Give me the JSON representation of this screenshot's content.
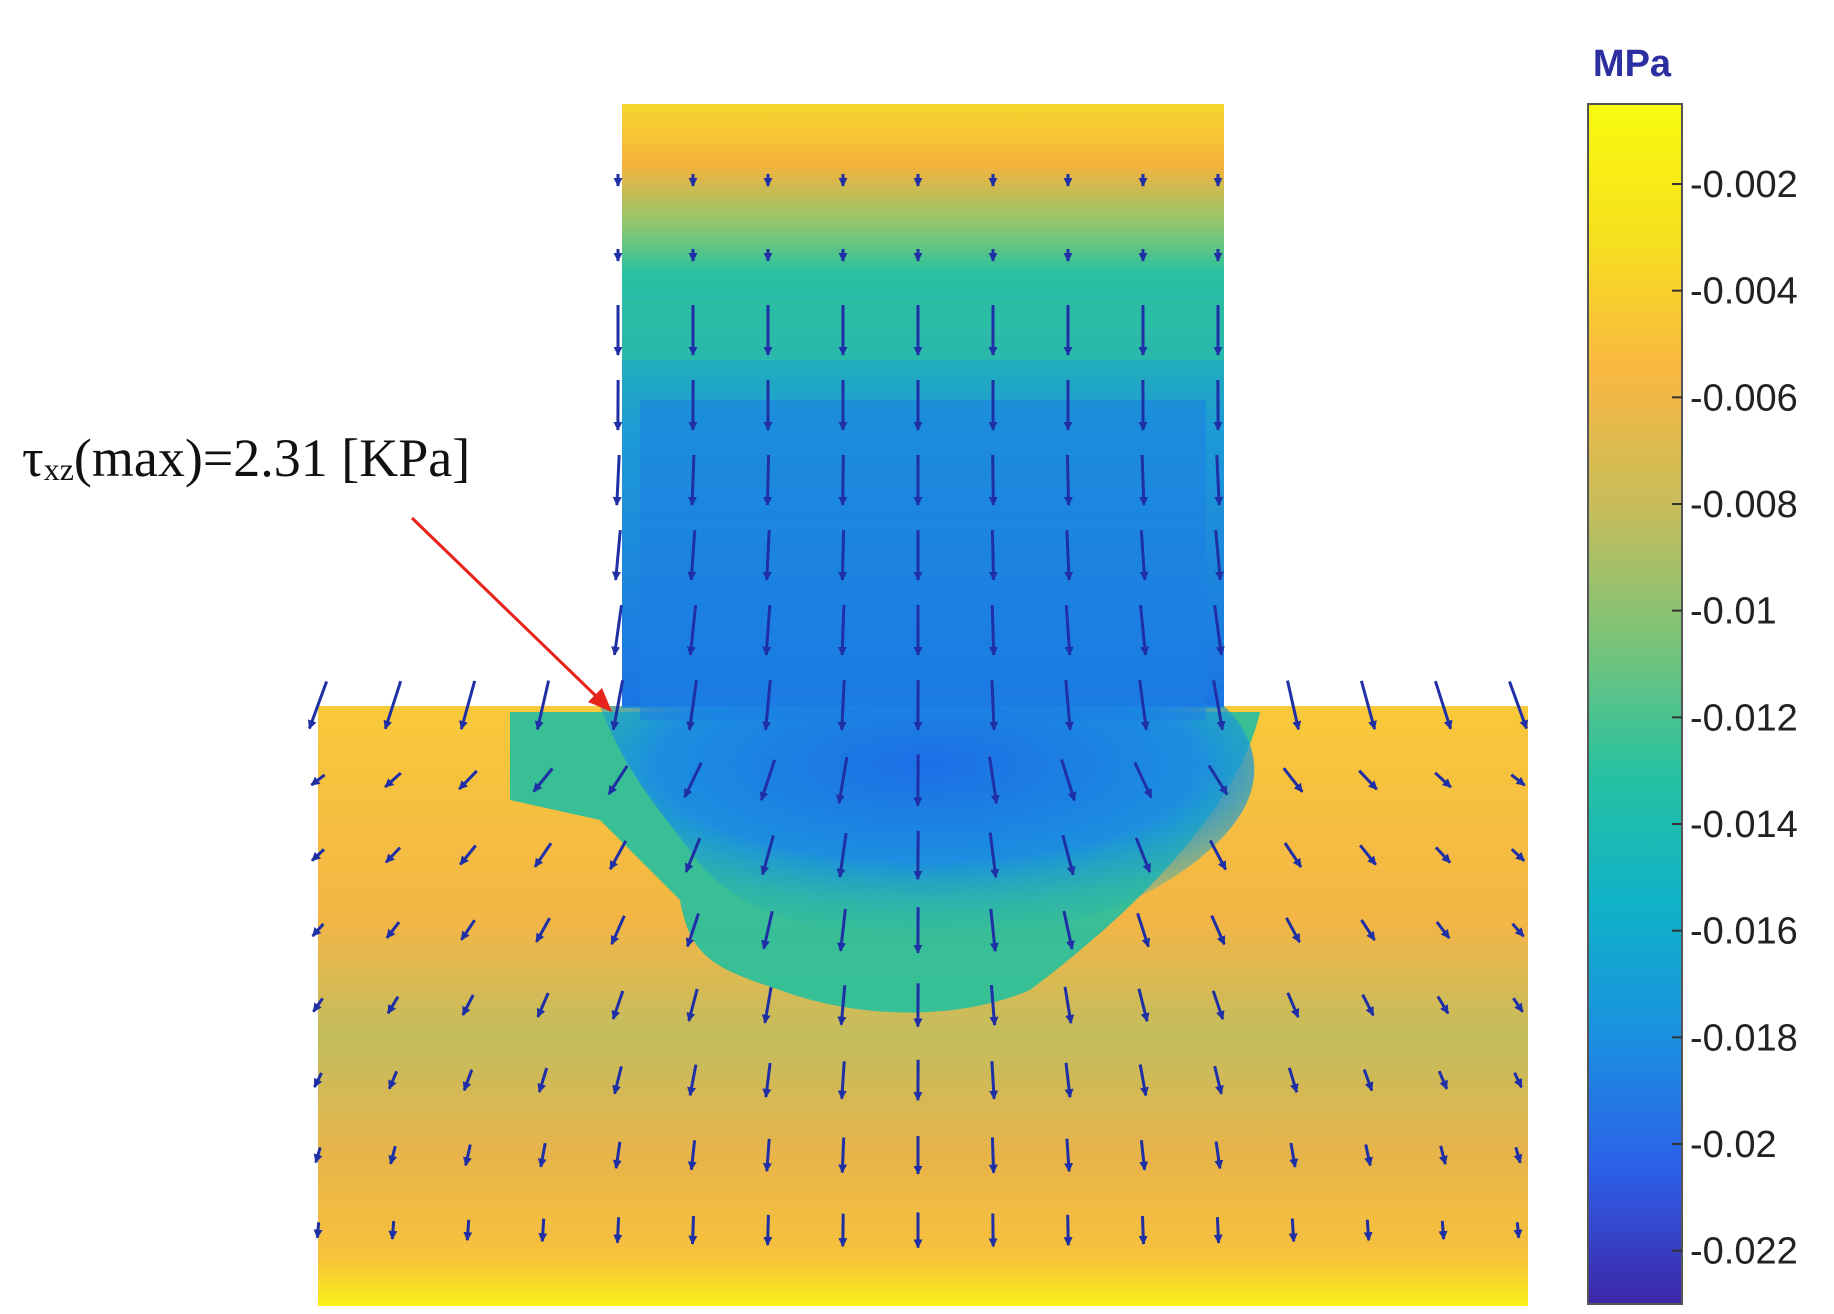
{
  "chart_data": {
    "type": "heatmap",
    "subtype": "contour-with-quiver",
    "colorbar": {
      "unit": "MPa",
      "min": -0.023,
      "max": -0.0005,
      "ticks": [
        -0.002,
        -0.004,
        -0.006,
        -0.008,
        -0.01,
        -0.012,
        -0.014,
        -0.016,
        -0.018,
        -0.02,
        -0.022
      ],
      "tick_labels": [
        "-0.002",
        "-0.004",
        "-0.006",
        "-0.008",
        "-0.01",
        "-0.012",
        "-0.014",
        "-0.016",
        "-0.018",
        "-0.02",
        "-0.022"
      ],
      "colormap": "parula",
      "colormap_stops": [
        "#3e26a8",
        "#2d5fe8",
        "#1a90e0",
        "#10b2c8",
        "#27c2a0",
        "#7cc478",
        "#c8bd5a",
        "#f9b741",
        "#f6e01e",
        "#f9fb0e"
      ]
    },
    "annotation": {
      "prefix": "τ",
      "subscript": "xz",
      "suffix": "(max)=2.31 [KPa]",
      "arrow_color": "#e8231c"
    },
    "arrow_color": "#1f2fa5",
    "shape": "T-section"
  }
}
